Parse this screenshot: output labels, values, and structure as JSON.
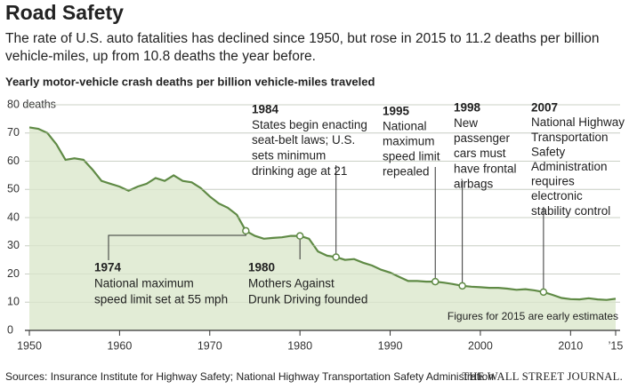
{
  "chart_data": {
    "type": "area",
    "title": "Road Safety",
    "subtitle": [
      "The rate of U.S. auto fatalities has declined since 1950, but rose in 2015 to 11.2 deaths per billion",
      "vehicle-miles, up from 10.8 deaths the year before."
    ],
    "chart_title": "Yearly motor-vehicle crash deaths per billion vehicle-miles traveled",
    "x": [
      1950,
      1951,
      1952,
      1953,
      1954,
      1955,
      1956,
      1957,
      1958,
      1959,
      1960,
      1961,
      1962,
      1963,
      1964,
      1965,
      1966,
      1967,
      1968,
      1969,
      1970,
      1971,
      1972,
      1973,
      1974,
      1975,
      1976,
      1977,
      1978,
      1979,
      1980,
      1981,
      1982,
      1983,
      1984,
      1985,
      1986,
      1987,
      1988,
      1989,
      1990,
      1991,
      1992,
      1993,
      1994,
      1995,
      1996,
      1997,
      1998,
      1999,
      2000,
      2001,
      2002,
      2003,
      2004,
      2005,
      2006,
      2007,
      2008,
      2009,
      2010,
      2011,
      2012,
      2013,
      2014,
      2015
    ],
    "values": [
      72.0,
      71.5,
      70.0,
      66.0,
      60.5,
      61.0,
      60.5,
      57.0,
      53.0,
      52.0,
      51.0,
      49.5,
      51.0,
      52.0,
      54.0,
      53.0,
      55.0,
      53.0,
      52.5,
      50.5,
      47.5,
      45.0,
      43.5,
      41.0,
      35.3,
      33.5,
      32.5,
      32.8,
      33.0,
      33.5,
      33.5,
      32.5,
      28.0,
      26.5,
      26.0,
      25.0,
      25.3,
      24.0,
      23.0,
      21.5,
      20.5,
      19.0,
      17.5,
      17.5,
      17.3,
      17.3,
      16.9,
      16.4,
      15.8,
      15.5,
      15.3,
      15.1,
      15.1,
      14.8,
      14.4,
      14.6,
      14.2,
      13.6,
      12.6,
      11.5,
      11.1,
      11.0,
      11.4,
      11.0,
      10.8,
      11.2
    ],
    "color": "#5f8a45",
    "fill_color": "#e2ecd6",
    "xlim": [
      1950,
      2015
    ],
    "xticks": [
      1950,
      1960,
      1970,
      1980,
      1990,
      2000,
      2010,
      {
        "value": 2015,
        "label": "’15"
      }
    ],
    "ylim": [
      0,
      80
    ],
    "yticks": [
      0,
      10,
      20,
      30,
      40,
      50,
      60,
      70,
      {
        "value": 80,
        "label": "80 deaths"
      }
    ],
    "grid": true,
    "annotations": [
      {
        "x": 1974,
        "text": [
          "National maximum",
          "speed limit set at 55 mph"
        ]
      },
      {
        "x": 1980,
        "text": [
          "Mothers Against",
          "Drunk Driving founded"
        ]
      },
      {
        "x": 1984,
        "text": [
          "States begin enacting",
          "seat-belt laws; U.S.",
          "sets minimum",
          "drinking age at 21"
        ]
      },
      {
        "x": 1995,
        "text": [
          "National",
          "maximum",
          "speed limit",
          "repealed"
        ]
      },
      {
        "x": 1998,
        "text": [
          "New",
          "passenger",
          "cars must",
          "have frontal",
          "airbags"
        ]
      },
      {
        "x": 2007,
        "text": [
          "National Highway",
          "Transportation",
          "Safety",
          "Administration",
          "requires",
          "electronic",
          "stability control"
        ]
      }
    ],
    "note": "Figures for 2015 are early estimates",
    "source": "Sources: Insurance Institute for Highway Safety; National Highway Transportation Safety Administration",
    "credit": "THE WALL STREET JOURNAL."
  }
}
